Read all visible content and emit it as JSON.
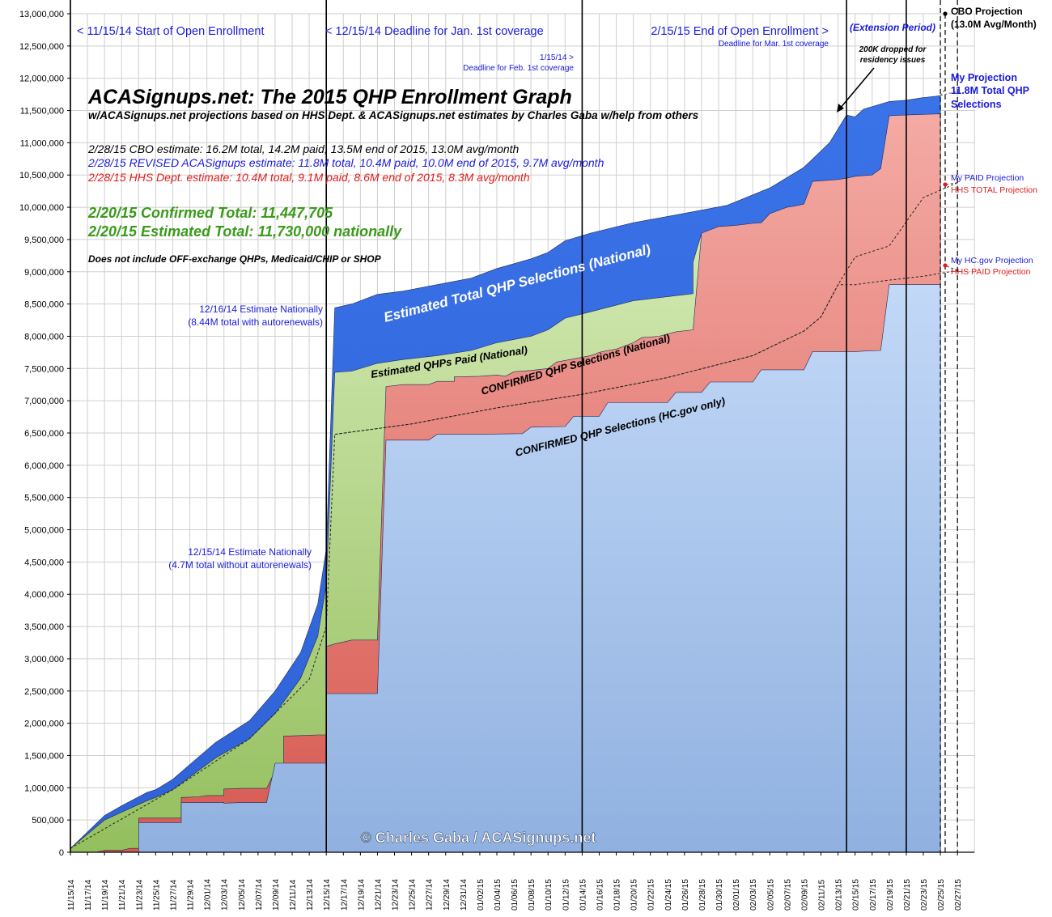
{
  "chart_data": {
    "type": "area",
    "title": "ACASignups.net: The 2015 QHP Enrollment Graph",
    "subtitle": "w/ACASignups.net projections based on HHS Dept. & ACASignups.net estimates by Charles Gaba w/help from others",
    "estimate_lines": [
      {
        "text": "2/28/15 CBO estimate: 16.2M total, 14.2M paid, 13.5M end of 2015, 13.0M avg/month",
        "color": "#000000"
      },
      {
        "text": "2/28/15 REVISED ACASignups estimate: 11.8M total, 10.4M paid, 10.0M end of 2015, 9.7M avg/month",
        "color": "#1a1adb"
      },
      {
        "text": "2/28/15 HHS Dept. estimate: 10.4M total, 9.1M paid, 8.6M end of 2015, 8.3M avg/month",
        "color": "#e01b1b"
      }
    ],
    "confirmed_total": "2/20/15 Confirmed Total: 11,447,705",
    "estimated_total": "2/20/15 Estimated Total: 11,730,000 nationally",
    "disclaimer": "Does not include OFF-exchange QHPs, Medicaid/CHIP or SHOP",
    "copyright": "© Charles Gaba / ACASignups.net",
    "ylim": [
      0,
      13000000
    ],
    "yticks": [
      "0",
      "500,000",
      "1,000,000",
      "1,500,000",
      "2,000,000",
      "2,500,000",
      "3,000,000",
      "3,500,000",
      "4,000,000",
      "4,500,000",
      "5,000,000",
      "5,500,000",
      "6,000,000",
      "6,500,000",
      "7,000,000",
      "7,500,000",
      "8,000,000",
      "8,500,000",
      "9,000,000",
      "9,500,000",
      "10,000,000",
      "10,500,000",
      "11,000,000",
      "11,500,000",
      "12,000,000",
      "12,500,000",
      "13,000,000"
    ],
    "xticks": [
      "11/15/14",
      "11/17/14",
      "11/19/14",
      "11/21/14",
      "11/23/14",
      "11/25/14",
      "11/27/14",
      "11/29/14",
      "12/01/14",
      "12/03/14",
      "12/05/14",
      "12/07/14",
      "12/09/14",
      "12/11/14",
      "12/13/14",
      "12/15/14",
      "12/17/14",
      "12/19/14",
      "12/21/14",
      "12/23/14",
      "12/25/14",
      "12/27/14",
      "12/29/14",
      "12/31/14",
      "01/02/15",
      "01/04/15",
      "01/06/15",
      "01/08/15",
      "01/10/15",
      "01/12/15",
      "01/14/15",
      "01/16/15",
      "01/18/15",
      "01/20/15",
      "01/22/15",
      "01/24/15",
      "01/26/15",
      "01/28/15",
      "01/30/15",
      "02/01/15",
      "02/03/15",
      "02/05/15",
      "02/07/15",
      "02/09/15",
      "02/11/15",
      "02/13/15",
      "02/15/15",
      "02/17/15",
      "02/19/15",
      "02/21/15",
      "02/23/15",
      "02/25/15",
      "02/27/15"
    ],
    "x_start_date": "11/15/14",
    "series": [
      {
        "name": "Estimated Total QHP Selections (National)",
        "color": "#3b78ec",
        "points": [
          [
            0,
            60000
          ],
          [
            4,
            570000
          ],
          [
            6,
            720000
          ],
          [
            9,
            930000
          ],
          [
            10,
            970000
          ],
          [
            12,
            1130000
          ],
          [
            17,
            1700000
          ],
          [
            21,
            2040000
          ],
          [
            24,
            2500000
          ],
          [
            27,
            3100000
          ],
          [
            29,
            3850000
          ],
          [
            30,
            4700000
          ],
          [
            31,
            8440000
          ],
          [
            33,
            8500000
          ],
          [
            36,
            8650000
          ],
          [
            39,
            8700000
          ],
          [
            43,
            8800000
          ],
          [
            47,
            8900000
          ],
          [
            50,
            9050000
          ],
          [
            54,
            9200000
          ],
          [
            56,
            9300000
          ],
          [
            58,
            9480000
          ],
          [
            61,
            9600000
          ],
          [
            66,
            9760000
          ],
          [
            71,
            9880000
          ],
          [
            77,
            10030000
          ],
          [
            82,
            10300000
          ],
          [
            86,
            10620000
          ],
          [
            89,
            11000000
          ],
          [
            91,
            11430000
          ],
          [
            92,
            11400000
          ],
          [
            93,
            11520000
          ],
          [
            96,
            11640000
          ],
          [
            98,
            11660000
          ],
          [
            100,
            11700000
          ],
          [
            102,
            11730000
          ]
        ]
      },
      {
        "name": "Estimated QHPs Paid (National)",
        "color": "#bcd99a",
        "points": [
          [
            0,
            60000
          ],
          [
            4,
            500000
          ],
          [
            6,
            620000
          ],
          [
            9,
            800000
          ],
          [
            10,
            850000
          ],
          [
            12,
            970000
          ],
          [
            17,
            1460000
          ],
          [
            21,
            1760000
          ],
          [
            24,
            2150000
          ],
          [
            27,
            2700000
          ],
          [
            29,
            3350000
          ],
          [
            30,
            4150000
          ],
          [
            31,
            7440000
          ],
          [
            33,
            7460000
          ],
          [
            36,
            7580000
          ],
          [
            39,
            7640000
          ],
          [
            43,
            7700000
          ],
          [
            47,
            7780000
          ],
          [
            50,
            7900000
          ],
          [
            54,
            8000000
          ],
          [
            56,
            8100000
          ],
          [
            58,
            8280000
          ],
          [
            61,
            8380000
          ],
          [
            66,
            8550000
          ],
          [
            71,
            8630000
          ],
          [
            73,
            8660000
          ],
          [
            73,
            9150000
          ],
          [
            74,
            9600000
          ],
          [
            77,
            9700000
          ],
          [
            82,
            9760000
          ]
        ]
      },
      {
        "name": "CONFIRMED QHP Selections (National)",
        "color": "#e88a84",
        "points": [
          [
            0,
            0
          ],
          [
            3,
            0
          ],
          [
            4,
            30000
          ],
          [
            6,
            30000
          ],
          [
            7,
            60000
          ],
          [
            8,
            60000
          ],
          [
            8,
            530000
          ],
          [
            10,
            530000
          ],
          [
            12,
            530000
          ],
          [
            13,
            530000
          ],
          [
            13,
            850000
          ],
          [
            15,
            860000
          ],
          [
            16,
            880000
          ],
          [
            18,
            880000
          ],
          [
            18,
            980000
          ],
          [
            20,
            990000
          ],
          [
            23,
            990000
          ],
          [
            24,
            1260000
          ],
          [
            25,
            1260000
          ],
          [
            25,
            1800000
          ],
          [
            29,
            1820000
          ],
          [
            30,
            1820000
          ],
          [
            30,
            3190000
          ],
          [
            31,
            3230000
          ],
          [
            33,
            3290000
          ],
          [
            36,
            3290000
          ],
          [
            36,
            3290000
          ],
          [
            37,
            7220000
          ],
          [
            39,
            7250000
          ],
          [
            42,
            7250000
          ],
          [
            43,
            7300000
          ],
          [
            45,
            7300000
          ],
          [
            45,
            7370000
          ],
          [
            48,
            7380000
          ],
          [
            50,
            7400000
          ],
          [
            51,
            7380000
          ],
          [
            52,
            7450000
          ],
          [
            54,
            7470000
          ],
          [
            56,
            7500000
          ],
          [
            57,
            7600000
          ],
          [
            59,
            7650000
          ],
          [
            61,
            7700000
          ],
          [
            62,
            7750000
          ],
          [
            63,
            7780000
          ],
          [
            64,
            7800000
          ],
          [
            66,
            7900000
          ],
          [
            67,
            7980000
          ],
          [
            69,
            8000000
          ],
          [
            71,
            8070000
          ],
          [
            73,
            8100000
          ],
          [
            74,
            9600000
          ],
          [
            76,
            9700000
          ],
          [
            78,
            9720000
          ],
          [
            80,
            9750000
          ],
          [
            81,
            9760000
          ],
          [
            82,
            9900000
          ],
          [
            84,
            10000000
          ],
          [
            85,
            10020000
          ],
          [
            86,
            10050000
          ],
          [
            87,
            10400000
          ],
          [
            89,
            10420000
          ],
          [
            90,
            10430000
          ],
          [
            91,
            10450000
          ],
          [
            92,
            10480000
          ],
          [
            94,
            10500000
          ],
          [
            95,
            10600000
          ],
          [
            96,
            11420000
          ],
          [
            98,
            11430000
          ],
          [
            100,
            11440000
          ],
          [
            102,
            11447705
          ]
        ]
      },
      {
        "name": "CONFIRMED QHP Selections (HC.gov only)",
        "color": "#aac6ee",
        "points": [
          [
            0,
            0
          ],
          [
            8,
            0
          ],
          [
            8,
            460000
          ],
          [
            10,
            460000
          ],
          [
            12,
            460000
          ],
          [
            13,
            460000
          ],
          [
            13,
            770000
          ],
          [
            16,
            770000
          ],
          [
            18,
            770000
          ],
          [
            18,
            760000
          ],
          [
            20,
            770000
          ],
          [
            23,
            770000
          ],
          [
            24,
            1380000
          ],
          [
            30,
            1380000
          ],
          [
            30,
            2460000
          ],
          [
            36,
            2460000
          ],
          [
            37,
            6390000
          ],
          [
            42,
            6390000
          ],
          [
            43,
            6480000
          ],
          [
            48,
            6480000
          ],
          [
            48,
            6480000
          ],
          [
            53,
            6490000
          ],
          [
            54,
            6590000
          ],
          [
            58,
            6600000
          ],
          [
            59,
            6760000
          ],
          [
            62,
            6760000
          ],
          [
            63,
            6970000
          ],
          [
            70,
            6970000
          ],
          [
            71,
            7130000
          ],
          [
            74,
            7130000
          ],
          [
            75,
            7290000
          ],
          [
            80,
            7290000
          ],
          [
            81,
            7480000
          ],
          [
            86,
            7480000
          ],
          [
            87,
            7760000
          ],
          [
            92,
            7760000
          ],
          [
            93,
            7770000
          ],
          [
            95,
            7780000
          ],
          [
            96,
            8800000
          ],
          [
            102,
            8800000
          ]
        ]
      }
    ],
    "projection_lines": [
      {
        "name": "My PAID Projection / HHS TOTAL Projection",
        "points": [
          [
            31,
            6480000
          ],
          [
            40,
            6640000
          ],
          [
            50,
            6890000
          ],
          [
            60,
            7100000
          ],
          [
            70,
            7360000
          ],
          [
            80,
            7700000
          ],
          [
            86,
            8080000
          ],
          [
            88,
            8300000
          ],
          [
            90,
            8800000
          ],
          [
            92,
            9230000
          ],
          [
            96,
            9400000
          ],
          [
            100,
            10150000
          ],
          [
            104,
            10380000
          ]
        ]
      },
      {
        "name": "My HC.gov Projection / HHS PAID Projection",
        "points": [
          [
            0,
            60000
          ],
          [
            12,
            970000
          ],
          [
            21,
            1760000
          ],
          [
            28,
            2680000
          ],
          [
            30,
            3500000
          ],
          [
            31,
            6480000
          ],
          [
            40,
            6640000
          ],
          [
            50,
            6890000
          ],
          [
            60,
            7100000
          ],
          [
            70,
            7360000
          ],
          [
            80,
            7700000
          ],
          [
            86,
            8080000
          ],
          [
            88,
            8300000
          ],
          [
            90,
            8800000
          ],
          [
            92,
            8800000
          ],
          [
            96,
            8870000
          ],
          [
            100,
            8930000
          ],
          [
            104,
            9020000
          ]
        ]
      },
      {
        "name": "My Projection",
        "points": [
          [
            102,
            11730000
          ],
          [
            104,
            11800000
          ]
        ]
      }
    ],
    "vertical_markers": [
      {
        "day": 0,
        "label": "< 11/15/14 Start of Open Enrollment",
        "style": "solid"
      },
      {
        "day": 30,
        "label": "< 12/15/14 Deadline for Jan. 1st coverage",
        "style": "solid"
      },
      {
        "day": 60,
        "label": "1/15/14 > Deadline for Feb. 1st coverage",
        "style": "solid"
      },
      {
        "day": 91,
        "label": "2/15/15 End of Open Enrollment > Deadline for Mar. 1st coverage",
        "style": "solid"
      },
      {
        "day": 98,
        "label": "",
        "style": "solid"
      },
      {
        "day": 102,
        "label": "(Extension Period)",
        "style": "dashed"
      }
    ],
    "annotations": {
      "est_1216_line1": "12/16/14 Estimate Nationally",
      "est_1216_line2": "(8.44M total with autorenewals)",
      "est_1215_line1": "12/15/14 Estimate Nationally",
      "est_1215_line2": "(4.7M total without autorenewals)",
      "dropped_line1": "200K dropped for",
      "dropped_line2": "residency issues",
      "label_est_total": "Estimated Total QHP Selections (National)",
      "label_est_paid": "Estimated QHPs Paid (National)",
      "label_conf_nat": "CONFIRMED QHP Selections (National)",
      "label_conf_hc": "CONFIRMED QHP Selections (HC.gov only)",
      "feb_deadline_top": "1/15/14 >",
      "feb_deadline_bottom": "Deadline for Feb. 1st coverage",
      "mar_deadline": "Deadline for Mar. 1st coverage",
      "start_enroll": "< 11/15/14 Start of Open Enrollment",
      "jan_deadline": "< 12/15/14 Deadline for Jan. 1st coverage",
      "end_enroll": "2/15/15 End of Open Enrollment >",
      "extension": "(Extension Period)"
    },
    "legend": {
      "cbo_line1": "CBO Projection",
      "cbo_line2": "(13.0M Avg/Month)",
      "my_proj_line1": "My Projection",
      "my_proj_line2": "11.8M Total QHP",
      "my_proj_line3": "Selections",
      "my_paid": "My PAID Projection",
      "hhs_total": "HHS TOTAL Projection",
      "my_hc": "My HC.gov Projection",
      "hhs_paid": "HHS PAID Projection"
    },
    "colors": {
      "est_total": "#3b78ec",
      "est_paid": "#bcd99a",
      "confirmed_national": "#e88a84",
      "confirmed_hc": "#aac6ee",
      "blue_text": "#1a1adb",
      "red_text": "#e01b1b",
      "green_text": "#3a9a1a"
    }
  }
}
